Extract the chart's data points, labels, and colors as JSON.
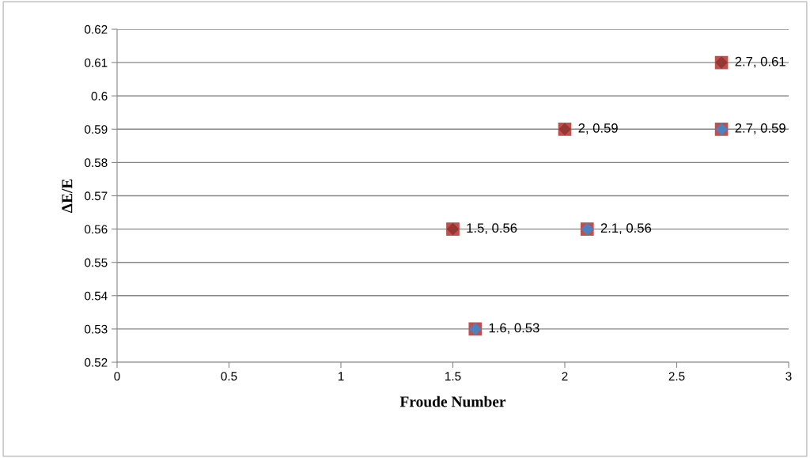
{
  "chart_data": {
    "type": "scatter",
    "xlabel": "Froude Number",
    "ylabel": "ΔE/E",
    "xlim": [
      0,
      3
    ],
    "xticks": [
      0,
      0.5,
      1,
      1.5,
      2,
      2.5,
      3
    ],
    "ylim": [
      0.52,
      0.62
    ],
    "yticks": [
      0.52,
      0.53,
      0.54,
      0.55,
      0.56,
      0.57,
      0.58,
      0.59,
      0.6,
      0.61,
      0.62
    ],
    "grid": "y",
    "legend": false,
    "series": [
      {
        "color": "#c0504d",
        "marker": "square",
        "x": [
          1.5,
          1.6,
          2,
          2.1,
          2.7,
          2.7
        ],
        "values": [
          0.56,
          0.53,
          0.59,
          0.56,
          0.61,
          0.59
        ],
        "value_labels": [
          "1.5, 0.56",
          "1.6, 0.53",
          "2, 0.59",
          "2.1, 0.56",
          "2.7, 0.61",
          "2.7, 0.59"
        ]
      },
      {
        "color": "#953735",
        "marker": "diamond",
        "x": [
          1.5,
          2,
          2.7
        ],
        "values": [
          0.56,
          0.59,
          0.61
        ]
      },
      {
        "color": "#4f81bd",
        "marker": "diamond",
        "x": [
          1.6,
          2.1,
          2.7
        ],
        "values": [
          0.53,
          0.56,
          0.59
        ]
      }
    ]
  }
}
